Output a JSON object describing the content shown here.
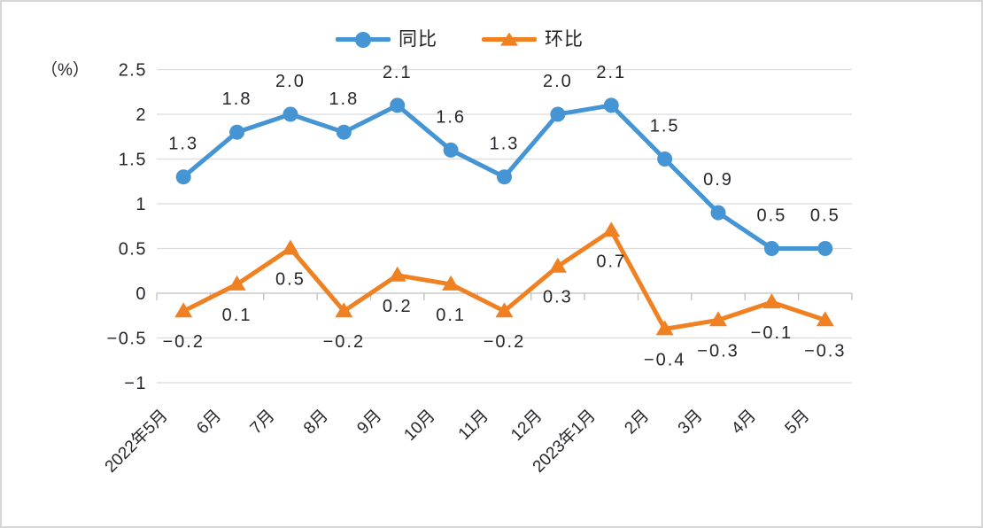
{
  "legend": {
    "items": [
      {
        "label": "同比",
        "marker": "circle"
      },
      {
        "label": "环比",
        "marker": "triangle"
      }
    ]
  },
  "chart_data": {
    "type": "line",
    "title": "",
    "xlabel": "",
    "ylabel": "（%）",
    "ylim": [
      -1,
      2.5
    ],
    "grid": "horizontal",
    "legend_position": "top-center",
    "categories": [
      "2022年5月",
      "6月",
      "7月",
      "8月",
      "9月",
      "10月",
      "11月",
      "12月",
      "2023年1月",
      "2月",
      "3月",
      "4月",
      "5月"
    ],
    "series": [
      {
        "name": "同比",
        "color": "#4595d4",
        "marker": "circle",
        "label_position": "above",
        "values": [
          1.3,
          1.8,
          2.0,
          1.8,
          2.1,
          1.6,
          1.3,
          2.0,
          2.1,
          1.5,
          0.9,
          0.5,
          0.5
        ],
        "labels": [
          "1.3",
          "1.8",
          "2.0",
          "1.8",
          "2.1",
          "1.6",
          "1.3",
          "2.0",
          "2.1",
          "1.5",
          "0.9",
          "0.5",
          "0.5"
        ]
      },
      {
        "name": "环比",
        "color": "#f08123",
        "marker": "triangle",
        "label_position": "below",
        "values": [
          -0.2,
          0.1,
          0.5,
          -0.2,
          0.2,
          0.1,
          -0.2,
          0.3,
          0.7,
          -0.4,
          -0.3,
          -0.1,
          -0.3
        ],
        "labels": [
          "-0.2",
          "0.1",
          "0.5",
          "-0.2",
          "0.2",
          "0.1",
          "-0.2",
          "0.3",
          "0.7",
          "-0.4",
          "-0.3",
          "-0.1",
          "-0.3"
        ]
      }
    ],
    "y_ticks": {
      "values": [
        2.5,
        2,
        1.5,
        1,
        0.5,
        0,
        -0.5,
        -1
      ],
      "labels": [
        "2.5",
        "2",
        "1.5",
        "1",
        "0.5",
        "0",
        "-0.5",
        "-1"
      ]
    }
  }
}
